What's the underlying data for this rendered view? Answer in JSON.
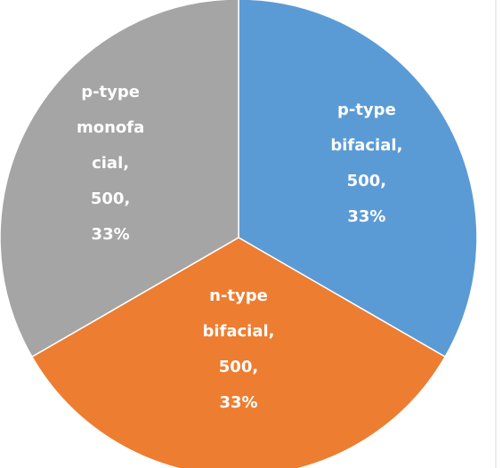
{
  "chart_data": {
    "type": "pie",
    "categories": [
      "p-type bifacial",
      "n-type bifacial",
      "p-type monofacial"
    ],
    "values": [
      500,
      500,
      500
    ],
    "percentages": [
      {
        "value": 33,
        "label": "33%"
      },
      {
        "value": 33,
        "label": "33%"
      },
      {
        "value": 33,
        "label": "33%"
      }
    ],
    "colors": [
      "#5b9bd5",
      "#ed7d31",
      "#a5a5a5"
    ]
  }
}
